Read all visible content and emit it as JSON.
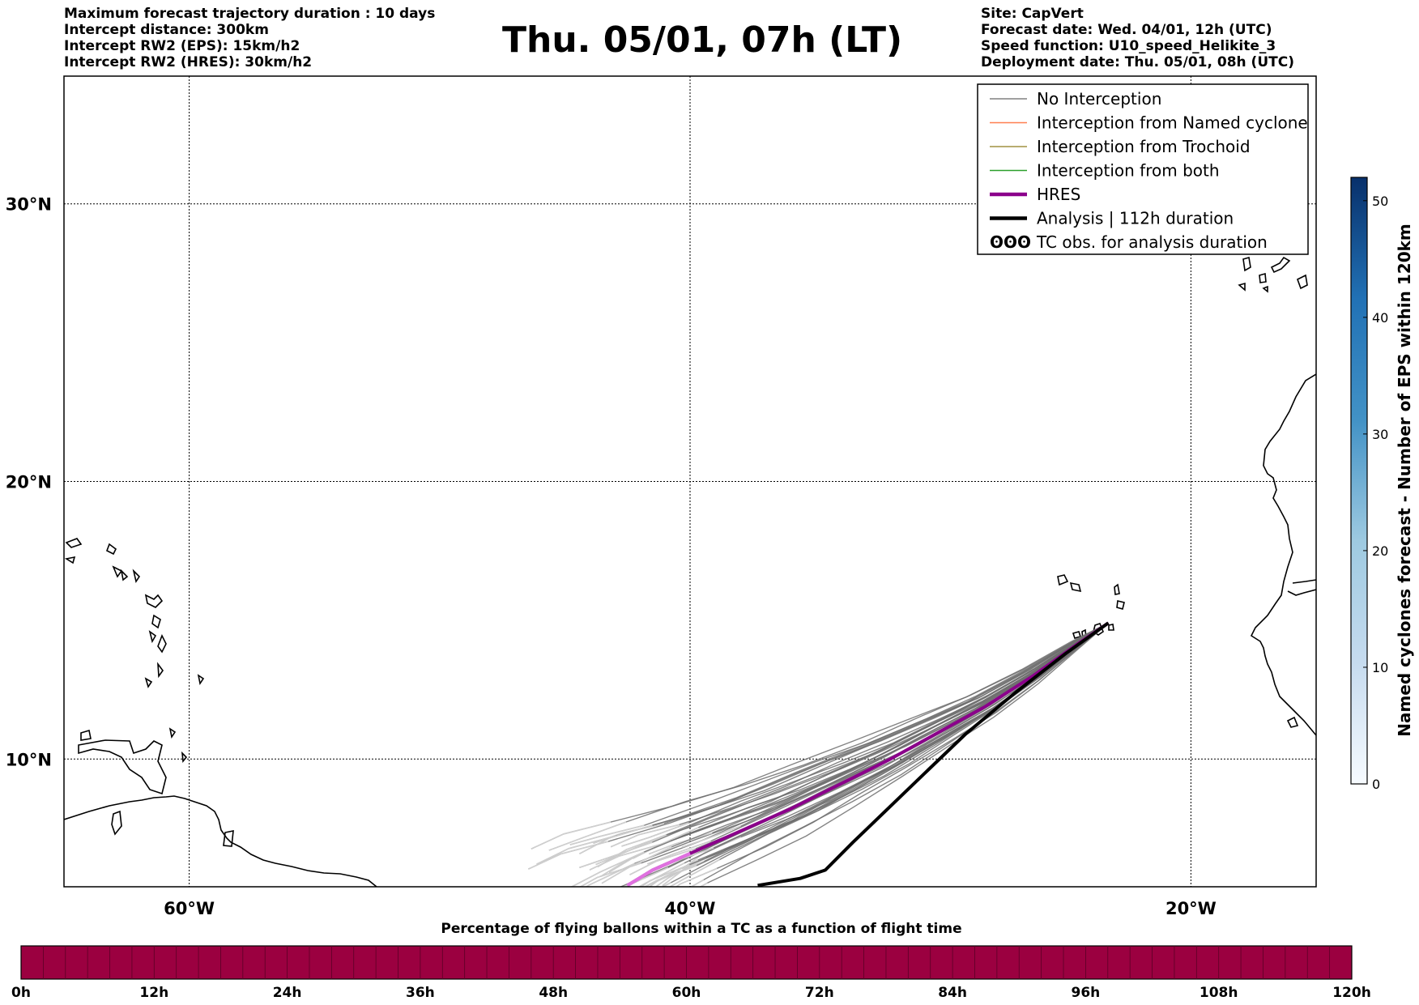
{
  "header": {
    "title": "Thu. 05/01, 07h (LT)",
    "left_info": [
      "Maximum forecast trajectory duration : 10 days",
      "Intercept distance: 300km",
      "Intercept RW2 (EPS):  15km/h2",
      "Intercept RW2 (HRES): 30km/h2"
    ],
    "right_info": [
      "Site: CapVert",
      "Forecast date: Wed. 04/01, 12h (UTC)",
      "Speed function: U10_speed_Helikite_3",
      "Deployment date: Thu. 05/01, 08h (UTC)"
    ]
  },
  "map": {
    "lon_range": [
      -65,
      -15
    ],
    "lat_range": [
      5.4,
      34.6
    ],
    "lon_ticks": [
      {
        "value": -60,
        "label": "60°W"
      },
      {
        "value": -40,
        "label": "40°W"
      },
      {
        "value": -20,
        "label": "20°W"
      }
    ],
    "lat_ticks": [
      {
        "value": 10,
        "label": "10°N"
      },
      {
        "value": 20,
        "label": "20°N"
      },
      {
        "value": 30,
        "label": "30°N"
      }
    ],
    "grid": true,
    "legend_placement": "top-right",
    "legend": [
      {
        "label": "No Interception",
        "color": "#808080",
        "style": "thin"
      },
      {
        "label": "Interception from Named cyclone",
        "color": "#ff7f50",
        "style": "thin"
      },
      {
        "label": "Interception from Trochoid",
        "color": "#a09040",
        "style": "thin"
      },
      {
        "label": "Interception from both",
        "color": "#2ca02c",
        "style": "thin"
      },
      {
        "label": "HRES",
        "color": "#8b008b",
        "style": "thick"
      },
      {
        "label": "Analysis | 112h duration",
        "color": "#000000",
        "style": "thick"
      },
      {
        "label": "TC obs. for analysis duration",
        "color": "#000000",
        "style": "symbol"
      }
    ],
    "legend_symbol": "ʘʘʘ",
    "launch_site": {
      "lon": -23.3,
      "lat": 14.9
    },
    "hres_track": [
      [
        -23.3,
        14.9
      ],
      [
        -24.6,
        14.1
      ],
      [
        -26.3,
        13.0
      ],
      [
        -28.2,
        11.9
      ],
      [
        -30.0,
        11.0
      ],
      [
        -32.0,
        10.0
      ],
      [
        -34.0,
        9.1
      ],
      [
        -36.0,
        8.2
      ],
      [
        -38.0,
        7.4
      ],
      [
        -40.0,
        6.6
      ],
      [
        -41.5,
        6.0
      ],
      [
        -42.5,
        5.45
      ]
    ],
    "analysis_track": [
      [
        -23.3,
        14.9
      ],
      [
        -25.0,
        13.8
      ],
      [
        -27.0,
        12.4
      ],
      [
        -29.0,
        10.9
      ],
      [
        -30.5,
        9.6
      ],
      [
        -32.0,
        8.3
      ],
      [
        -33.5,
        7.0
      ],
      [
        -34.6,
        6.0
      ],
      [
        -35.6,
        5.7
      ],
      [
        -37.3,
        5.45
      ]
    ],
    "ensemble_spread": 1.6,
    "ensemble_count": 40,
    "ensemble_color": "#6e6e6e",
    "ensemble_fade_color": "#cfcfcf"
  },
  "colorbar_right": {
    "label": "Named cyclones forecast - Number of EPS within 120km",
    "range": [
      0,
      52
    ],
    "ticks": [
      0,
      10,
      20,
      30,
      40,
      50
    ],
    "colormap": "Blues"
  },
  "colorbar_bottom": {
    "title": "Percentage of flying ballons within a TC as a function of flight time",
    "ticks": [
      "0h",
      "12h",
      "24h",
      "36h",
      "48h",
      "60h",
      "72h",
      "84h",
      "96h",
      "108h",
      "120h"
    ],
    "fill_color": "#9b0040"
  }
}
